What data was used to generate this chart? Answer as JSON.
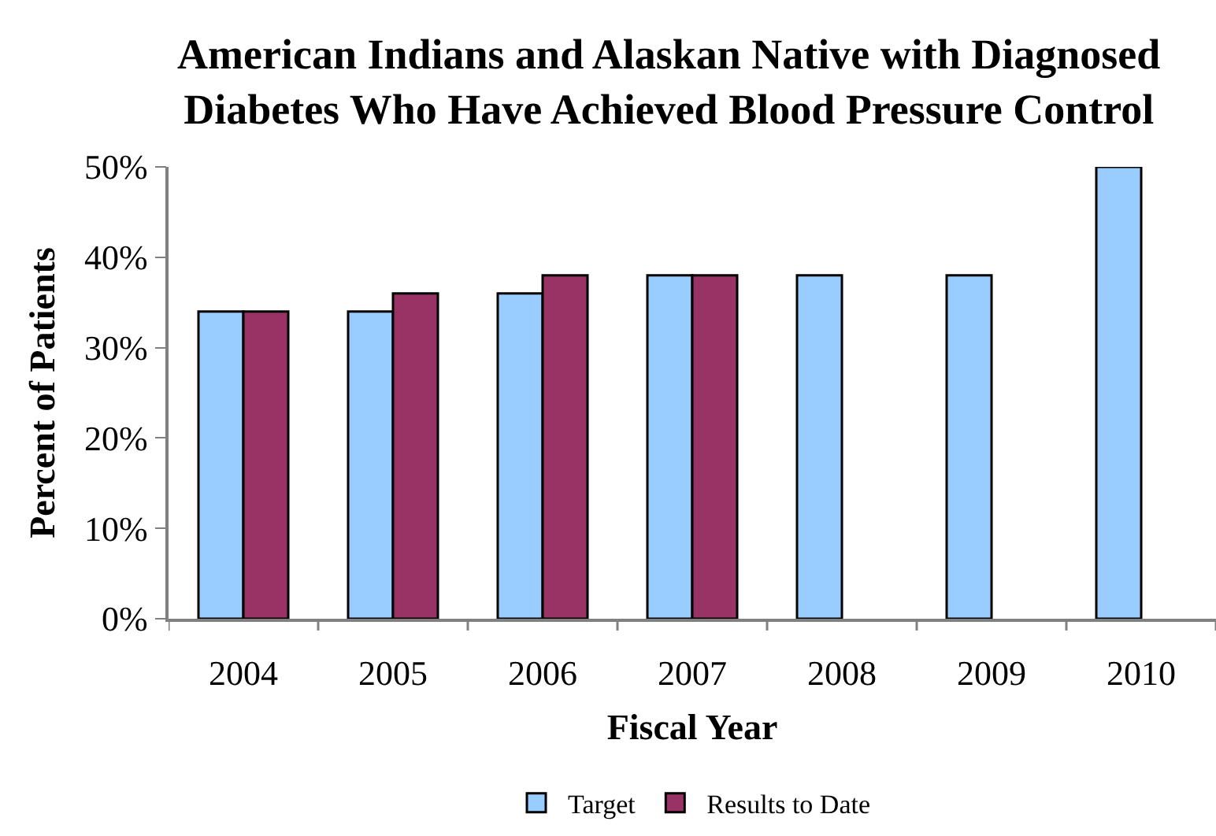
{
  "chart_data": {
    "type": "bar",
    "title": "American Indians and Alaskan Native with Diagnosed\nDiabetes Who Have Achieved Blood Pressure Control",
    "xlabel": "Fiscal Year",
    "ylabel": "Percent of Patients",
    "categories": [
      "2004",
      "2005",
      "2006",
      "2007",
      "2008",
      "2009",
      "2010"
    ],
    "series": [
      {
        "name": "Target",
        "color": "#99ccff",
        "values": [
          34,
          34,
          36,
          38,
          38,
          38,
          50
        ]
      },
      {
        "name": "Results to Date",
        "color": "#993366",
        "values": [
          34,
          36,
          38,
          38,
          null,
          null,
          null
        ]
      }
    ],
    "ylim": [
      0,
      50
    ],
    "yticks": [
      {
        "value": 0,
        "label": "0%"
      },
      {
        "value": 10,
        "label": "10%"
      },
      {
        "value": 20,
        "label": "20%"
      },
      {
        "value": 30,
        "label": "30%"
      },
      {
        "value": 40,
        "label": "40%"
      },
      {
        "value": 50,
        "label": "50%"
      }
    ],
    "legend": "bottom"
  }
}
